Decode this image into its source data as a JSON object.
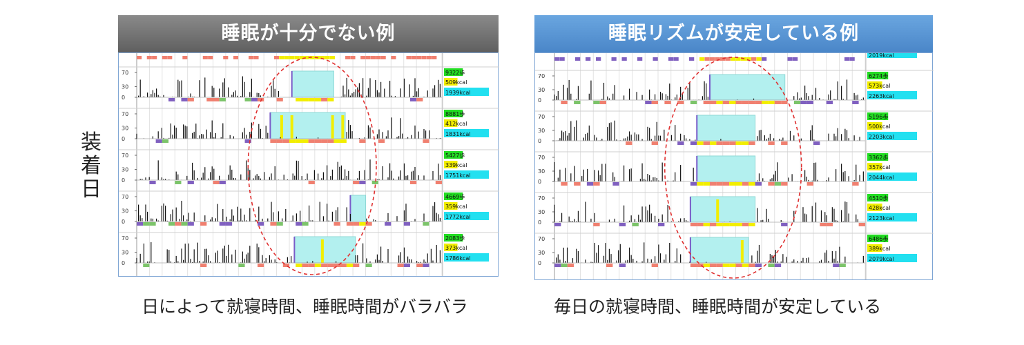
{
  "vertical_label": [
    "装",
    "着",
    "日"
  ],
  "colors": {
    "sleep_fill": "#b3f0ef",
    "sleep_edge": "#7a5cc8",
    "wake_marker": "#f2ee00",
    "strip_red": "#f08070",
    "strip_yellow": "#f2ee00",
    "strip_green": "#7cc46a",
    "strip_purple": "#8060c0",
    "steps_bg": "#22dd22",
    "kcal_active_bg": "#f2ee00",
    "kcal_total_bg": "#22e0f0",
    "ellipse": "#e03030",
    "activity": "#111111"
  },
  "chart_data": [
    {
      "type": "bar",
      "title": "睡眠が十分でない例",
      "caption": "日によって就寝時間、睡眠時間がバラバラ",
      "y_ticks": [
        "70",
        "30",
        "0"
      ],
      "ylim": [
        0,
        70
      ],
      "x_range_hours": [
        0,
        24
      ],
      "days": [
        {
          "steps": "9322歩",
          "active_kcal": "509kcal",
          "total_kcal": "1939kcal",
          "sleep_start": 12.2,
          "sleep_end": 15.5,
          "wake_marks": []
        },
        {
          "steps": "8881歩",
          "active_kcal": "412kcal",
          "total_kcal": "1831kcal",
          "sleep_start": 10.5,
          "sleep_end": 16.4,
          "wake_marks": [
            11.4,
            12.2,
            15.4,
            16.2
          ]
        },
        {
          "steps": "5427歩",
          "active_kcal": "339kcal",
          "total_kcal": "1751kcal",
          "sleep_start": null,
          "sleep_end": null,
          "wake_marks": []
        },
        {
          "steps": "4669歩",
          "active_kcal": "359kcal",
          "total_kcal": "1772kcal",
          "sleep_start": 16.8,
          "sleep_end": 18.0,
          "wake_marks": []
        },
        {
          "steps": "2083歩",
          "active_kcal": "373kcal",
          "total_kcal": "1786kcal",
          "sleep_start": 12.4,
          "sleep_end": 17.2,
          "wake_marks": [
            14.6
          ]
        }
      ]
    },
    {
      "type": "bar",
      "title": "睡眠リズムが安定している例",
      "caption": "毎日の就寝時間、睡眠時間が安定している",
      "y_ticks": [
        "70",
        "30",
        "0"
      ],
      "ylim": [
        0,
        70
      ],
      "x_range_hours": [
        0,
        24
      ],
      "top_partial_kcal": "2019kcal",
      "days": [
        {
          "steps": "6274歩",
          "active_kcal": "573kcal",
          "total_kcal": "2263kcal",
          "sleep_start": 12.0,
          "sleep_end": 17.8,
          "wake_marks": []
        },
        {
          "steps": "5196歩",
          "active_kcal": "500kcal",
          "total_kcal": "2203kcal",
          "sleep_start": 11.0,
          "sleep_end": 15.5,
          "wake_marks": []
        },
        {
          "steps": "3362歩",
          "active_kcal": "357kcal",
          "total_kcal": "2044kcal",
          "sleep_start": 11.0,
          "sleep_end": 15.5,
          "wake_marks": []
        },
        {
          "steps": "4510歩",
          "active_kcal": "428kcal",
          "total_kcal": "2123kcal",
          "sleep_start": 10.5,
          "sleep_end": 15.5,
          "wake_marks": [
            12.6
          ]
        },
        {
          "steps": "6486歩",
          "active_kcal": "389kcal",
          "total_kcal": "2079kcal",
          "sleep_start": 10.5,
          "sleep_end": 15.0,
          "wake_marks": [
            14.5
          ]
        }
      ]
    }
  ]
}
